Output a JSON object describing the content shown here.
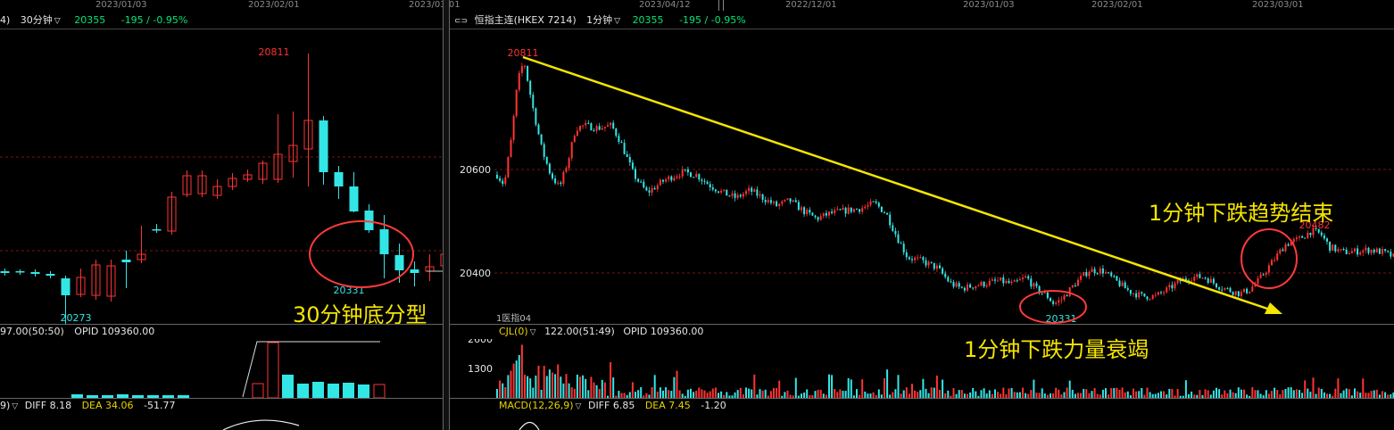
{
  "left_panel": {
    "dates": [
      "2023/01/03",
      "2023/02/01",
      "2023/03/01"
    ],
    "header": {
      "prefix": "4)",
      "period": "30分钟",
      "price": "20355",
      "change": "-195 / -0.95%"
    },
    "volume_header": {
      "value": "97.00(50:50)",
      "opid": "OPID 109360.00"
    },
    "macd_header": {
      "prefix": "9)",
      "diff": "DIFF 8.18",
      "dea": "DEA 34.06",
      "macd": "-51.77"
    },
    "high_label": "20811",
    "low_label": "20273",
    "low2_label": "20331",
    "annotation": "30分钟底分型"
  },
  "right_panel": {
    "dates": [
      "2023/04/12",
      "2022/12/01",
      "2023/01/03",
      "2023/02/01",
      "2023/03/01"
    ],
    "header": {
      "icon": "⊂⊃",
      "name": "恒指主连(HKEX 7214)",
      "period": "1分钟",
      "price": "20355",
      "change": "-195 / -0.95%"
    },
    "price_axis": [
      "20600",
      "20400"
    ],
    "high_label": "20811",
    "low_label": "20331",
    "high2_label": "20482",
    "stamp": "1医指04",
    "volume_header": {
      "name": "CJL(0)",
      "value": "122.00(51:49)",
      "opid": "OPID 109360.00"
    },
    "volume_axis": [
      "2600",
      "1300"
    ],
    "macd_header": {
      "name": "MACD(12,26,9)",
      "diff": "DIFF 6.85",
      "dea": "DEA 7.45",
      "macd": "-1.20"
    },
    "annotations": {
      "trend_end": "1分钟下跌趋势结束",
      "force_exhaust": "1分钟下跌力量衰竭"
    }
  },
  "colors": {
    "up": "#ff3333",
    "down": "#33e6e6",
    "trendline": "#f5e500",
    "circle": "#ff3a3a",
    "dashed_grid": "#7a1414"
  },
  "chart_data": [
    {
      "type": "candlestick",
      "title": "30分钟",
      "labels": {
        "high": 20811,
        "low": 20273,
        "bottom_fractal_low": 20331
      }
    },
    {
      "type": "candlestick",
      "title": "恒指主连(HKEX 7214) 1分钟",
      "y_ticks": [
        20600,
        20400
      ],
      "labels": {
        "high": 20811,
        "low": 20331,
        "recent_high": 20482
      },
      "annotations": [
        "1分钟下跌趋势结束",
        "1分钟下跌力量衰竭"
      ]
    }
  ]
}
